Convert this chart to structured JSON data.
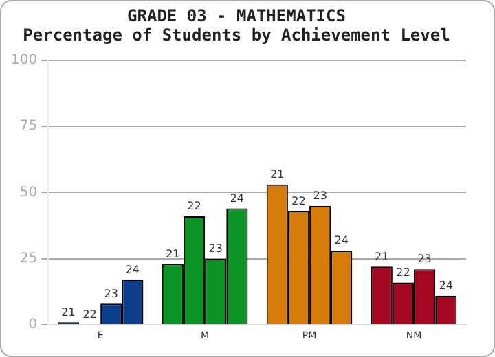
{
  "chart_data": {
    "type": "bar",
    "title": "GRADE 03 - MATHEMATICS",
    "subtitle": "Percentage of Students by Achievement Level",
    "categories": [
      "E",
      "M",
      "PM",
      "NM"
    ],
    "series": [
      {
        "name": "21",
        "colors": [
          "#0b3f8c",
          "#0a9426",
          "#d67a08",
          "#a50823"
        ],
        "values": [
          1,
          23,
          53,
          22
        ]
      },
      {
        "name": "22",
        "colors": [
          "#0b3f8c",
          "#0a9426",
          "#d67a08",
          "#a50823"
        ],
        "values": [
          0,
          41,
          43,
          16
        ]
      },
      {
        "name": "23",
        "colors": [
          "#0b3f8c",
          "#0a9426",
          "#d67a08",
          "#a50823"
        ],
        "values": [
          8,
          25,
          45,
          21
        ]
      },
      {
        "name": "24",
        "colors": [
          "#0b3f8c",
          "#0a9426",
          "#d67a08",
          "#a50823"
        ],
        "values": [
          17,
          44,
          28,
          11
        ]
      }
    ],
    "ylim": [
      0,
      100
    ],
    "yticks": [
      0,
      25,
      50,
      75,
      100
    ],
    "grid": "y",
    "legend": false
  }
}
